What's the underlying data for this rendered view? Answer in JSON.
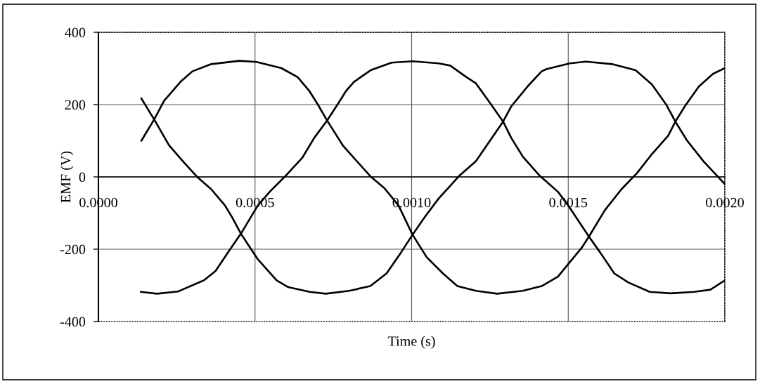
{
  "chart_data": {
    "type": "line",
    "xlabel": "Time (s)",
    "ylabel": "EMF (V)",
    "xlim": [
      0,
      0.002
    ],
    "ylim": [
      -400,
      400
    ],
    "xticks": [
      {
        "value": 0,
        "label": "0.0000"
      },
      {
        "value": 0.0005,
        "label": "0.0005"
      },
      {
        "value": 0.001,
        "label": "0.0010"
      },
      {
        "value": 0.0015,
        "label": "0.0015"
      },
      {
        "value": 0.002,
        "label": "0.0020"
      }
    ],
    "yticks": [
      -400,
      -200,
      0,
      200,
      400
    ],
    "grid": true,
    "line_style": "solid",
    "series": [
      {
        "color": "#000000",
        "x": [
          0.000137,
          0.000178,
          0.00021,
          0.000262,
          0.0003,
          0.00036,
          0.00045,
          0.000505,
          0.000584,
          0.000636,
          0.000674,
          0.0007,
          0.00073,
          0.000782,
          0.000869,
          0.000913,
          0.000958,
          0.001003,
          0.001048,
          0.0011,
          0.001146,
          0.001205,
          0.001273,
          0.001355,
          0.001415,
          0.001467,
          0.0015,
          0.001543,
          0.001566,
          0.001617,
          0.00167,
          0.00172,
          0.001767,
          0.001819,
          0.001842,
          0.001872,
          0.001917,
          0.001962,
          0.002
        ],
        "values": [
          100,
          159,
          211,
          263,
          292,
          312,
          321,
          318,
          301,
          276,
          237,
          201,
          156,
          85,
          1,
          -31,
          -79,
          -160,
          -222,
          -267,
          -302,
          -315,
          -323,
          -315,
          -302,
          -276,
          -241,
          -196,
          -165,
          -92,
          -34,
          11,
          63,
          114,
          153,
          195,
          250,
          285,
          301
        ]
      },
      {
        "color": "#000000",
        "x": [
          0.000137,
          0.000178,
          0.000225,
          0.00027,
          0.000314,
          0.00036,
          0.000404,
          0.000427,
          0.000455,
          0.000479,
          0.000509,
          0.000569,
          0.000606,
          0.000674,
          0.000726,
          0.000801,
          0.000868,
          0.00092,
          0.000966,
          0.001003,
          0.001041,
          0.001086,
          0.001123,
          0.001153,
          0.001205,
          0.001292,
          0.001318,
          0.00137,
          0.001415,
          0.00143,
          0.001505,
          0.001557,
          0.00164,
          0.001715,
          0.001767,
          0.001812,
          0.001842,
          0.001879,
          0.001932,
          0.002
        ],
        "values": [
          217,
          159,
          88,
          43,
          1,
          -34,
          -79,
          -112,
          -157,
          -189,
          -228,
          -286,
          -305,
          -318,
          -323,
          -315,
          -302,
          -267,
          -209,
          -160,
          -112,
          -60,
          -25,
          4,
          43,
          153,
          195,
          250,
          292,
          298,
          314,
          319,
          312,
          295,
          256,
          201,
          153,
          101,
          43,
          -20
        ]
      },
      {
        "color": "#000000",
        "x": [
          0.000135,
          0.000187,
          0.000254,
          0.000337,
          0.000374,
          0.000419,
          0.000455,
          0.000509,
          0.000547,
          0.000599,
          0.000651,
          0.000689,
          0.00073,
          0.000764,
          0.00079,
          0.000816,
          0.000869,
          0.000936,
          0.001003,
          0.001086,
          0.001123,
          0.001175,
          0.001205,
          0.00125,
          0.001292,
          0.001318,
          0.001355,
          0.001408,
          0.001467,
          0.0015,
          0.001566,
          0.001602,
          0.001647,
          0.001692,
          0.00176,
          0.001827,
          0.001902,
          0.001954,
          0.002
        ],
        "values": [
          -318,
          -323,
          -317,
          -286,
          -260,
          -202,
          -157,
          -79,
          -41,
          4,
          53,
          108,
          156,
          201,
          237,
          263,
          295,
          316,
          320,
          314,
          308,
          276,
          259,
          205,
          153,
          108,
          56,
          4,
          -41,
          -79,
          -165,
          -209,
          -267,
          -292,
          -318,
          -322,
          -318,
          -312,
          -286
        ]
      }
    ]
  }
}
